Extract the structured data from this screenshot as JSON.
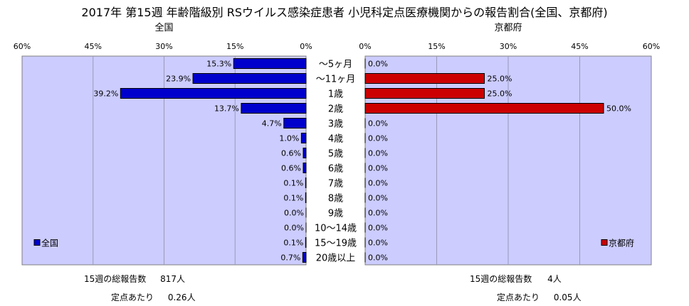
{
  "title": "2017年 第15週 年齢階級別 RSウイルス感染症患者 小児科定点医療機関からの報告割合(全国、京都府)",
  "chart_data": [
    {
      "type": "bar",
      "orientation": "horizontal",
      "direction": "right-to-left",
      "title": "全国",
      "xlim": [
        0,
        60
      ],
      "xticks": [
        "60%",
        "45%",
        "30%",
        "15%",
        "0%"
      ],
      "tick_values": [
        60,
        45,
        30,
        15,
        0
      ],
      "grid": true,
      "background": "#ccccff",
      "categories": [
        "～5ヶ月",
        "～11ヶ月",
        "1歳",
        "2歳",
        "3歳",
        "4歳",
        "5歳",
        "6歳",
        "7歳",
        "8歳",
        "9歳",
        "10～14歳",
        "15～19歳",
        "20歳以上"
      ],
      "series": [
        {
          "name": "全国",
          "color": "#0000cc",
          "values": [
            15.3,
            23.9,
            39.2,
            13.7,
            4.7,
            1.0,
            0.6,
            0.6,
            0.1,
            0.1,
            0.0,
            0.0,
            0.1,
            0.7
          ],
          "labels": [
            "15.3%",
            "23.9%",
            "39.2%",
            "13.7%",
            "4.7%",
            "1.0%",
            "0.6%",
            "0.6%",
            "0.1%",
            "0.1%",
            "0.0%",
            "0.0%",
            "0.1%",
            "0.7%"
          ]
        }
      ],
      "legend_position": "bottom-left"
    },
    {
      "type": "bar",
      "orientation": "horizontal",
      "direction": "left-to-right",
      "title": "京都府",
      "xlim": [
        0,
        60
      ],
      "xticks": [
        "0%",
        "15%",
        "30%",
        "45%",
        "60%"
      ],
      "tick_values": [
        0,
        15,
        30,
        45,
        60
      ],
      "grid": true,
      "background": "#ccccff",
      "categories": [
        "～5ヶ月",
        "～11ヶ月",
        "1歳",
        "2歳",
        "3歳",
        "4歳",
        "5歳",
        "6歳",
        "7歳",
        "8歳",
        "9歳",
        "10～14歳",
        "15～19歳",
        "20歳以上"
      ],
      "series": [
        {
          "name": "京都府",
          "color": "#cc0000",
          "values": [
            0.0,
            25.0,
            25.0,
            50.0,
            0.0,
            0.0,
            0.0,
            0.0,
            0.0,
            0.0,
            0.0,
            0.0,
            0.0,
            0.0
          ],
          "labels": [
            "0.0%",
            "25.0%",
            "25.0%",
            "50.0%",
            "0.0%",
            "0.0%",
            "0.0%",
            "0.0%",
            "0.0%",
            "0.0%",
            "0.0%",
            "0.0%",
            "0.0%",
            "0.0%"
          ]
        }
      ],
      "legend_position": "bottom-right"
    }
  ],
  "summary": {
    "national": {
      "total_label": "15週の総報告数",
      "total_value": "817人",
      "per_label": "定点あたり",
      "per_value": "0.26人"
    },
    "kyoto": {
      "total_label": "15週の総報告数",
      "total_value": "4人",
      "per_label": "定点あたり",
      "per_value": "0.05人"
    }
  }
}
